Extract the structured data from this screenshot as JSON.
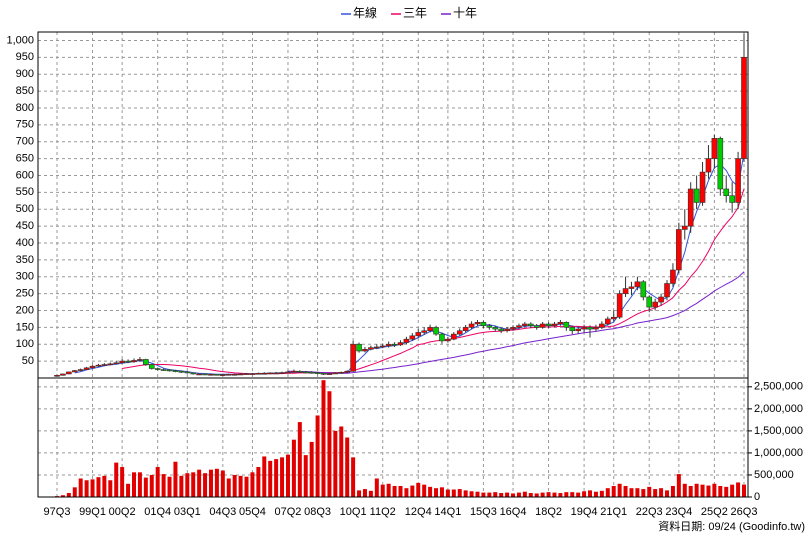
{
  "chart_data": {
    "type": "candlestick",
    "categories": [
      "97Q3",
      null,
      null,
      null,
      null,
      null,
      "99Q1",
      null,
      null,
      null,
      null,
      "00Q2",
      null,
      null,
      null,
      null,
      null,
      "01Q4",
      null,
      null,
      null,
      null,
      "03Q1",
      null,
      null,
      null,
      null,
      null,
      "04Q3",
      null,
      null,
      null,
      null,
      "05Q4",
      null,
      null,
      null,
      null,
      null,
      "07Q2",
      null,
      null,
      null,
      null,
      "08Q3",
      null,
      null,
      null,
      null,
      null,
      "10Q1",
      null,
      null,
      null,
      null,
      "11Q2",
      null,
      null,
      null,
      null,
      null,
      "12Q4",
      null,
      null,
      null,
      null,
      "14Q1",
      null,
      null,
      null,
      null,
      null,
      "15Q3",
      null,
      null,
      null,
      null,
      "16Q4",
      null,
      null,
      null,
      null,
      null,
      "18Q2",
      null,
      null,
      null,
      null,
      null,
      "19Q4",
      null,
      null,
      null,
      null,
      "21Q1",
      null,
      null,
      null,
      null,
      null,
      "22Q3",
      null,
      null,
      null,
      null,
      "23Q4",
      null,
      null,
      null,
      null,
      null,
      "25Q2",
      null,
      null,
      null,
      null,
      "26Q3"
    ],
    "open": [
      6,
      8,
      12,
      18,
      22,
      25,
      30,
      35,
      38,
      40,
      42,
      45,
      50,
      48,
      52,
      55,
      40,
      28,
      25,
      24,
      22,
      20,
      18,
      15,
      12,
      12,
      11,
      11,
      10,
      10,
      11,
      11,
      12,
      13,
      13,
      14,
      14,
      15,
      15,
      16,
      18,
      20,
      18,
      17,
      16,
      14,
      12,
      13,
      15,
      17,
      20,
      100,
      80,
      85,
      90,
      92,
      95,
      100,
      98,
      105,
      115,
      125,
      135,
      140,
      150,
      130,
      110,
      115,
      130,
      140,
      150,
      160,
      165,
      155,
      150,
      145,
      140,
      145,
      150,
      155,
      160,
      155,
      150,
      160,
      155,
      160,
      165,
      150,
      140,
      145,
      150,
      145,
      150,
      160,
      175,
      180,
      250,
      265,
      270,
      285,
      240,
      210,
      225,
      240,
      280,
      320,
      440,
      450,
      560,
      520,
      610,
      650,
      710,
      560,
      540,
      520,
      650
    ],
    "high": [
      10,
      13,
      19,
      24,
      28,
      33,
      38,
      42,
      44,
      46,
      50,
      56,
      55,
      58,
      62,
      57,
      42,
      31,
      28,
      26,
      24,
      22,
      20,
      16,
      14,
      13,
      13,
      12,
      12,
      13,
      13,
      14,
      15,
      15,
      16,
      17,
      17,
      18,
      19,
      22,
      25,
      23,
      21,
      20,
      18,
      15,
      15,
      17,
      19,
      23,
      110,
      105,
      92,
      96,
      100,
      102,
      108,
      106,
      112,
      122,
      133,
      145,
      150,
      158,
      155,
      135,
      122,
      136,
      147,
      157,
      168,
      172,
      170,
      160,
      155,
      150,
      151,
      156,
      161,
      166,
      165,
      160,
      166,
      165,
      166,
      172,
      168,
      155,
      152,
      158,
      156,
      158,
      168,
      182,
      200,
      260,
      300,
      285,
      300,
      290,
      245,
      235,
      250,
      290,
      340,
      460,
      500,
      580,
      600,
      640,
      690,
      720,
      715,
      600,
      580,
      670,
      1020
    ],
    "low": [
      5,
      7,
      11,
      17,
      20,
      24,
      28,
      33,
      35,
      37,
      40,
      42,
      44,
      45,
      48,
      36,
      25,
      22,
      21,
      19,
      17,
      15,
      13,
      10,
      10,
      9,
      9,
      8,
      8,
      9,
      9,
      10,
      11,
      11,
      12,
      12,
      12,
      13,
      13,
      14,
      16,
      15,
      14,
      13,
      11,
      9,
      10,
      12,
      13,
      15,
      18,
      75,
      76,
      82,
      86,
      88,
      90,
      92,
      95,
      100,
      110,
      120,
      128,
      135,
      125,
      102,
      105,
      112,
      125,
      135,
      145,
      155,
      148,
      143,
      138,
      133,
      135,
      140,
      145,
      150,
      148,
      143,
      146,
      148,
      150,
      155,
      140,
      130,
      132,
      135,
      120,
      138,
      145,
      155,
      168,
      175,
      240,
      245,
      260,
      230,
      195,
      200,
      215,
      230,
      270,
      310,
      410,
      430,
      500,
      510,
      590,
      620,
      540,
      520,
      490,
      500,
      640
    ],
    "close": [
      8,
      12,
      18,
      22,
      25,
      30,
      35,
      38,
      40,
      42,
      45,
      50,
      48,
      52,
      55,
      40,
      28,
      25,
      24,
      22,
      20,
      18,
      15,
      12,
      12,
      11,
      11,
      10,
      10,
      11,
      11,
      12,
      13,
      13,
      14,
      14,
      15,
      15,
      16,
      18,
      20,
      18,
      17,
      16,
      14,
      12,
      13,
      15,
      17,
      20,
      100,
      80,
      85,
      90,
      92,
      95,
      100,
      98,
      105,
      115,
      125,
      135,
      140,
      150,
      130,
      110,
      115,
      130,
      140,
      150,
      160,
      165,
      155,
      150,
      145,
      140,
      145,
      150,
      155,
      160,
      155,
      150,
      160,
      155,
      160,
      165,
      150,
      140,
      145,
      150,
      145,
      150,
      160,
      175,
      180,
      250,
      265,
      270,
      285,
      240,
      210,
      225,
      240,
      280,
      320,
      440,
      450,
      560,
      520,
      610,
      650,
      710,
      560,
      540,
      520,
      650,
      950
    ],
    "up_color": "#ff0000",
    "down_color": "#00cc00",
    "volume": [
      20000,
      40000,
      90000,
      220000,
      420000,
      380000,
      400000,
      450000,
      480000,
      380000,
      780000,
      680000,
      300000,
      560000,
      560000,
      440000,
      500000,
      680000,
      520000,
      460000,
      800000,
      480000,
      540000,
      560000,
      620000,
      540000,
      620000,
      640000,
      600000,
      420000,
      500000,
      480000,
      460000,
      560000,
      680000,
      920000,
      820000,
      860000,
      900000,
      960000,
      1300000,
      1700000,
      950000,
      1250000,
      1850000,
      2650000,
      2400000,
      1500000,
      1600000,
      1350000,
      900000,
      150000,
      180000,
      140000,
      420000,
      280000,
      300000,
      250000,
      250000,
      200000,
      260000,
      320000,
      280000,
      230000,
      200000,
      220000,
      170000,
      170000,
      180000,
      150000,
      130000,
      120000,
      100000,
      100000,
      110000,
      90000,
      100000,
      80000,
      100000,
      120000,
      90000,
      80000,
      100000,
      110000,
      100000,
      90000,
      110000,
      110000,
      100000,
      130000,
      150000,
      120000,
      140000,
      200000,
      250000,
      300000,
      250000,
      200000,
      200000,
      180000,
      230000,
      180000,
      200000,
      150000,
      250000,
      520000,
      300000,
      250000,
      300000,
      280000,
      260000,
      300000,
      250000,
      230000,
      280000,
      330000,
      280000
    ],
    "volume_color": "#e00000",
    "series": [
      {
        "name": "年線",
        "color": "#3355dd",
        "values": [
          null,
          null,
          null,
          15,
          19,
          24,
          28,
          32,
          36,
          39,
          41,
          44,
          46,
          49,
          51,
          49,
          44,
          37,
          29,
          25,
          23,
          21,
          19,
          16,
          14,
          13,
          12,
          11,
          11,
          11,
          11,
          11,
          12,
          12,
          13,
          14,
          14,
          15,
          15,
          16,
          17,
          18,
          18,
          18,
          16,
          15,
          14,
          14,
          14,
          16,
          38,
          54,
          71,
          89,
          87,
          91,
          94,
          96,
          100,
          105,
          111,
          120,
          129,
          138,
          139,
          133,
          126,
          121,
          124,
          134,
          145,
          154,
          158,
          158,
          154,
          148,
          145,
          145,
          148,
          153,
          155,
          155,
          156,
          155,
          156,
          160,
          158,
          154,
          150,
          146,
          145,
          148,
          151,
          158,
          166,
          191,
          218,
          241,
          268,
          265,
          251,
          240,
          229,
          239,
          266,
          320,
          373,
          443,
          493,
          535,
          585,
          623,
          633,
          615,
          583,
          568,
          665
        ]
      },
      {
        "name": "三年",
        "color": "#ee0066",
        "values": [
          null,
          null,
          null,
          null,
          null,
          null,
          null,
          null,
          null,
          null,
          null,
          28,
          31,
          34,
          37,
          39,
          40,
          40,
          40,
          39,
          38,
          36,
          34,
          32,
          29,
          27,
          24,
          21,
          19,
          17,
          15,
          14,
          13,
          12,
          12,
          12,
          13,
          13,
          13,
          14,
          14,
          15,
          15,
          16,
          16,
          16,
          16,
          16,
          16,
          16,
          22,
          27,
          33,
          39,
          45,
          52,
          59,
          66,
          73,
          81,
          89,
          99,
          102,
          107,
          110,
          112,
          114,
          117,
          120,
          124,
          128,
          132,
          135,
          137,
          138,
          139,
          141,
          142,
          144,
          147,
          149,
          150,
          151,
          151,
          152,
          153,
          153,
          153,
          153,
          152,
          152,
          151,
          151,
          152,
          154,
          161,
          170,
          180,
          190,
          197,
          202,
          208,
          215,
          225,
          238,
          260,
          276,
          300,
          320,
          345,
          375,
          410,
          435,
          458,
          478,
          505,
          560
        ]
      },
      {
        "name": "十年",
        "color": "#7722cc",
        "values": [
          null,
          null,
          null,
          null,
          null,
          null,
          null,
          null,
          null,
          null,
          null,
          null,
          null,
          null,
          null,
          null,
          null,
          null,
          null,
          null,
          null,
          null,
          null,
          null,
          null,
          null,
          null,
          null,
          null,
          null,
          null,
          null,
          null,
          null,
          null,
          null,
          null,
          null,
          null,
          20,
          20,
          19,
          19,
          18,
          17,
          16,
          15,
          15,
          14,
          14,
          16,
          18,
          20,
          22,
          24,
          26,
          29,
          31,
          34,
          36,
          39,
          42,
          46,
          49,
          52,
          55,
          58,
          61,
          65,
          68,
          72,
          76,
          79,
          83,
          86,
          89,
          93,
          96,
          100,
          104,
          107,
          110,
          113,
          116,
          119,
          122,
          125,
          128,
          131,
          134,
          136,
          138,
          141,
          144,
          146,
          150,
          154,
          158,
          163,
          166,
          169,
          172,
          175,
          179,
          185,
          192,
          200,
          211,
          221,
          233,
          245,
          258,
          268,
          278,
          287,
          298,
          315
        ]
      }
    ],
    "ylim": [
      0,
      1025
    ],
    "yticks": [
      50,
      100,
      150,
      200,
      250,
      300,
      350,
      400,
      450,
      500,
      550,
      600,
      650,
      700,
      750,
      800,
      850,
      900,
      950,
      {
        "value": 1000,
        "label": "1,000"
      }
    ],
    "y2lim": [
      0,
      2700000
    ],
    "y2ticks": [
      0,
      {
        "value": 500000,
        "label": "500,000"
      },
      {
        "value": 1000000,
        "label": "1,000,000"
      },
      {
        "value": 1500000,
        "label": "1,500,000"
      },
      {
        "value": 2000000,
        "label": "2,000,000"
      },
      {
        "value": 2500000,
        "label": "2,500,000"
      }
    ],
    "grid": true,
    "source": "資料日期: 09/24 (Goodinfo.tw)"
  }
}
